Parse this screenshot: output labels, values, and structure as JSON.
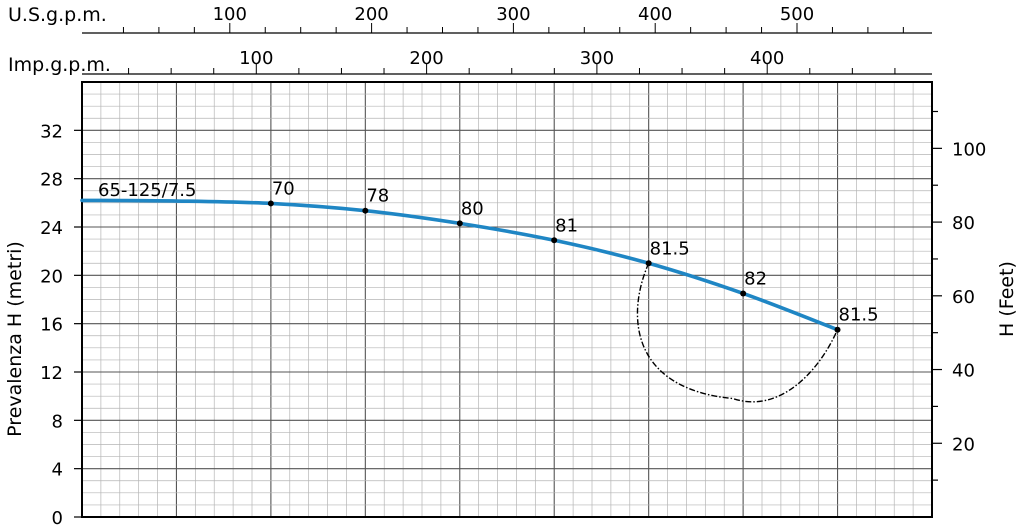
{
  "chart_data": {
    "type": "line",
    "title": "",
    "curve_name": "65-125/7.5",
    "ylabel": "Prevalenza H (metri)",
    "ylabel_right": "H (Feet)",
    "top_axis_1": {
      "label": "U.S.g.p.m.",
      "ticks": [
        100,
        200,
        300,
        400,
        500
      ]
    },
    "top_axis_2": {
      "label": "Imp.g.p.m.",
      "ticks": [
        100,
        200,
        300,
        400
      ]
    },
    "ylim": [
      0,
      36
    ],
    "yticks": [
      0,
      4,
      8,
      12,
      16,
      20,
      24,
      28,
      32
    ],
    "ylim_right": [
      0,
      118
    ],
    "yticks_right": [
      20,
      40,
      60,
      80,
      100
    ],
    "x_range": [
      0,
      600
    ],
    "grid": true,
    "series": [
      {
        "x": [
          0,
          66.7,
          133.3,
          200,
          266.7,
          333.3,
          400,
          466.7,
          533.3
        ],
        "y": [
          26.2,
          26.15,
          25.95,
          25.35,
          24.3,
          22.9,
          21.0,
          18.5,
          15.5
        ]
      }
    ],
    "efficiency_points": [
      {
        "x": 133.3,
        "y": 25.95,
        "label": "70"
      },
      {
        "x": 200,
        "y": 25.35,
        "label": "78"
      },
      {
        "x": 266.7,
        "y": 24.3,
        "label": "80"
      },
      {
        "x": 333.3,
        "y": 22.9,
        "label": "81"
      },
      {
        "x": 400,
        "y": 21.0,
        "label": "81.5"
      },
      {
        "x": 466.7,
        "y": 18.5,
        "label": "82"
      },
      {
        "x": 533.3,
        "y": 15.5,
        "label": "81.5"
      }
    ],
    "operating_range_loop": {
      "from": 400,
      "to": 533.3,
      "lowest_y": 9.8,
      "style": "dash-dot"
    },
    "colors": {
      "curve": "#1f86c4",
      "grid": "#888888",
      "frame": "#000000",
      "loop": "#000000"
    }
  }
}
